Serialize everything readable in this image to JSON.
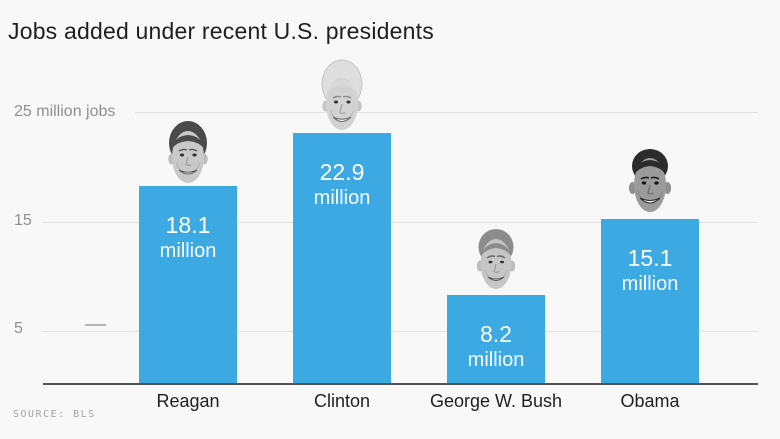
{
  "title": "Jobs added under recent U.S. presidents",
  "source_label": "SOURCE: BLS",
  "y_axis_labels": [
    "25 million jobs",
    "15",
    "5"
  ],
  "presidents": [
    {
      "name": "Reagan",
      "value": "18.1",
      "unit": "million"
    },
    {
      "name": "Clinton",
      "value": "22.9",
      "unit": "million"
    },
    {
      "name": "George W. Bush",
      "value": "8.2",
      "unit": "million"
    },
    {
      "name": "Obama",
      "value": "15.1",
      "unit": "million"
    }
  ],
  "colors": {
    "bar": "#3da9e2",
    "background": "#f8f8f8",
    "axis": "#545454",
    "gridline": "#e2e2e2",
    "axis_label": "#8f8f8f",
    "title_text": "#1f1f1f",
    "value_text": "#ffffff",
    "source_text": "#a3a3a3"
  },
  "chart_data": {
    "type": "bar",
    "categories": [
      "Reagan",
      "Clinton",
      "George W. Bush",
      "Obama"
    ],
    "values": [
      18.1,
      22.9,
      8.2,
      15.1
    ],
    "bar_labels": [
      "18.1 million",
      "22.9 million",
      "8.2 million",
      "15.1 million"
    ],
    "title": "Jobs added under recent U.S. presidents",
    "xlabel": "",
    "ylabel": "million jobs",
    "yticks": [
      5,
      15,
      25
    ],
    "ylim": [
      0,
      26
    ],
    "unit": "million",
    "grid": true,
    "legend": false,
    "source": "SOURCE: BLS",
    "annotations": "grayscale portrait photo of each president sits on top of his bar"
  }
}
